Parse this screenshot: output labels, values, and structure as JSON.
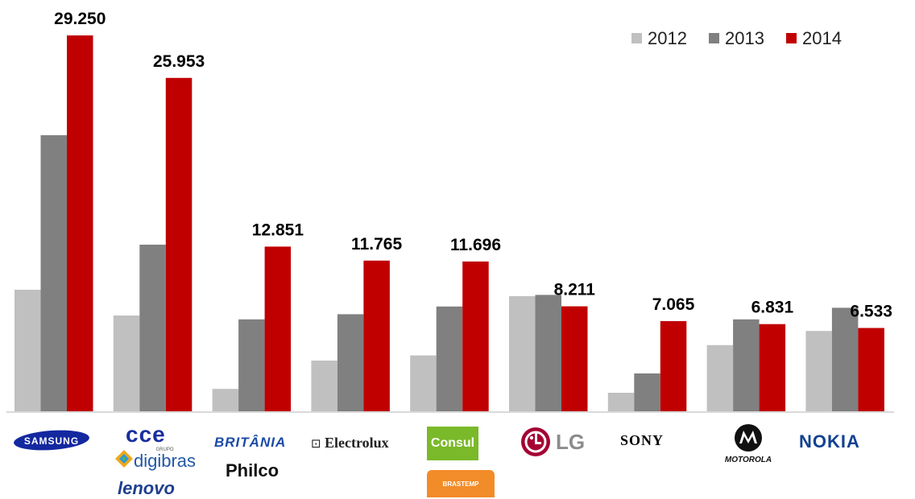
{
  "chart_data": {
    "type": "bar",
    "categories": [
      "Samsung",
      "CCE / Digibras / Lenovo",
      "Britânia / Philco",
      "Electrolux",
      "Consul / Brastemp",
      "LG",
      "Sony",
      "Motorola",
      "Nokia"
    ],
    "series": [
      {
        "name": "2012",
        "color": "#c0c0c0",
        "values": [
          9.5,
          7.5,
          1.8,
          4.0,
          4.4,
          9.0,
          1.5,
          5.2,
          6.3
        ]
      },
      {
        "name": "2013",
        "color": "#808080",
        "values": [
          21.5,
          13.0,
          7.2,
          7.6,
          8.2,
          9.1,
          3.0,
          7.2,
          8.1
        ]
      },
      {
        "name": "2014",
        "color": "#c00000",
        "values": [
          29.25,
          25.953,
          12.851,
          11.765,
          11.696,
          8.211,
          7.065,
          6.831,
          6.533
        ]
      }
    ],
    "data_labels": [
      "29.250",
      "25.953",
      "12.851",
      "11.765",
      "11.696",
      "8.211",
      "7.065",
      "6.831",
      "6.533"
    ],
    "ylim": [
      0,
      29.25
    ],
    "grid": false,
    "legend_position": "top-right",
    "xlabel": "",
    "ylabel": ""
  },
  "legend": {
    "items": [
      "2012",
      "2013",
      "2014"
    ]
  },
  "logos": {
    "samsung": "SAMSUNG",
    "cce": "cce",
    "digibras_grupo": "GRUPO",
    "digibras": "digibras",
    "lenovo": "lenovo",
    "britania": "BRITÂNIA",
    "philco": "Philco",
    "electrolux_mark": "⊡",
    "electrolux": "Electrolux",
    "consul": "Consul",
    "brastemp": "BRASTEMP",
    "lg": "LG",
    "sony": "SONY",
    "motorola": "MOTOROLA",
    "nokia": "NOKIA"
  },
  "colors": {
    "c2012": "#c0c0c0",
    "c2013": "#808080",
    "c2014": "#c00000",
    "samsung_blue": "#1428a0",
    "nokia_blue": "#124191",
    "consul_green": "#7ab929",
    "brastemp_orange": "#f28c28",
    "lg_red": "#a50034"
  }
}
